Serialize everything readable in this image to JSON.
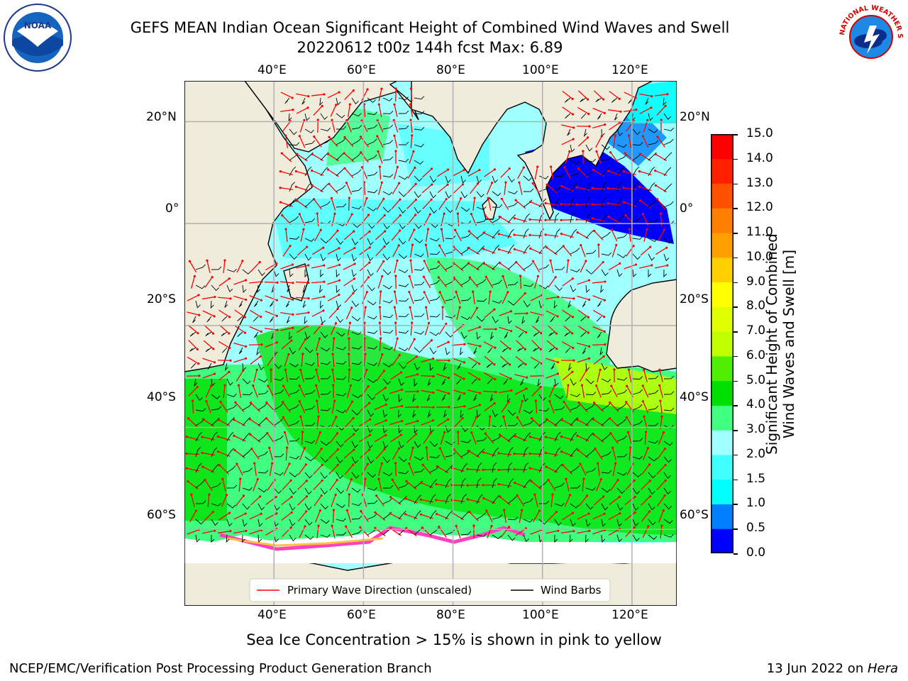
{
  "title": {
    "line1": "GEFS MEAN Indian Ocean Significant Height of Combined Wind Waves and Swell",
    "line2": "20220612 t00z 144h fcst   Max: 6.89"
  },
  "logos": {
    "left": {
      "name": "noaa-logo",
      "text": "NOAA"
    },
    "right": {
      "name": "nws-logo",
      "text": "NATIONAL WEATHER SERVICE"
    }
  },
  "map": {
    "lon_labels": [
      "40°E",
      "60°E",
      "80°E",
      "100°E",
      "120°E"
    ],
    "lat_labels": [
      "20°N",
      "0°",
      "20°S",
      "40°S",
      "60°S"
    ],
    "lon_range": [
      20,
      130
    ],
    "lat_range": [
      -75,
      28
    ],
    "colors": {
      "land": "#efecdc",
      "ice": "#ffffff"
    }
  },
  "legend": {
    "wave_direction": "Primary Wave Direction (unscaled)",
    "wind_barbs": "Wind Barbs",
    "wave_color": "#ff0000",
    "barb_color": "#000000"
  },
  "colorbar": {
    "label_line1": "Significant Height of Combined",
    "label_line2": "Wind Waves and Swell [m]",
    "ticks": [
      "0.0",
      "0.5",
      "1.0",
      "1.5",
      "2.0",
      "3.0",
      "4.0",
      "5.0",
      "6.0",
      "7.0",
      "8.0",
      "9.0",
      "10.0",
      "11.0",
      "12.0",
      "13.0",
      "14.0",
      "15.0"
    ],
    "colors": [
      "#0000ff",
      "#0080ff",
      "#00ffff",
      "#40ffff",
      "#a0ffff",
      "#40ff80",
      "#00e000",
      "#50ee00",
      "#c0ff00",
      "#e0ff00",
      "#ffff00",
      "#ffd000",
      "#ffa000",
      "#ff8000",
      "#ff5000",
      "#ff2000",
      "#ff0000"
    ]
  },
  "caption": "Sea Ice Concentration > 15% is shown in pink to yellow",
  "footer": {
    "left": "NCEP/EMC/Verification Post Processing Product Generation Branch",
    "right_date": "13 Jun 2022 on ",
    "right_host": "Hera"
  }
}
